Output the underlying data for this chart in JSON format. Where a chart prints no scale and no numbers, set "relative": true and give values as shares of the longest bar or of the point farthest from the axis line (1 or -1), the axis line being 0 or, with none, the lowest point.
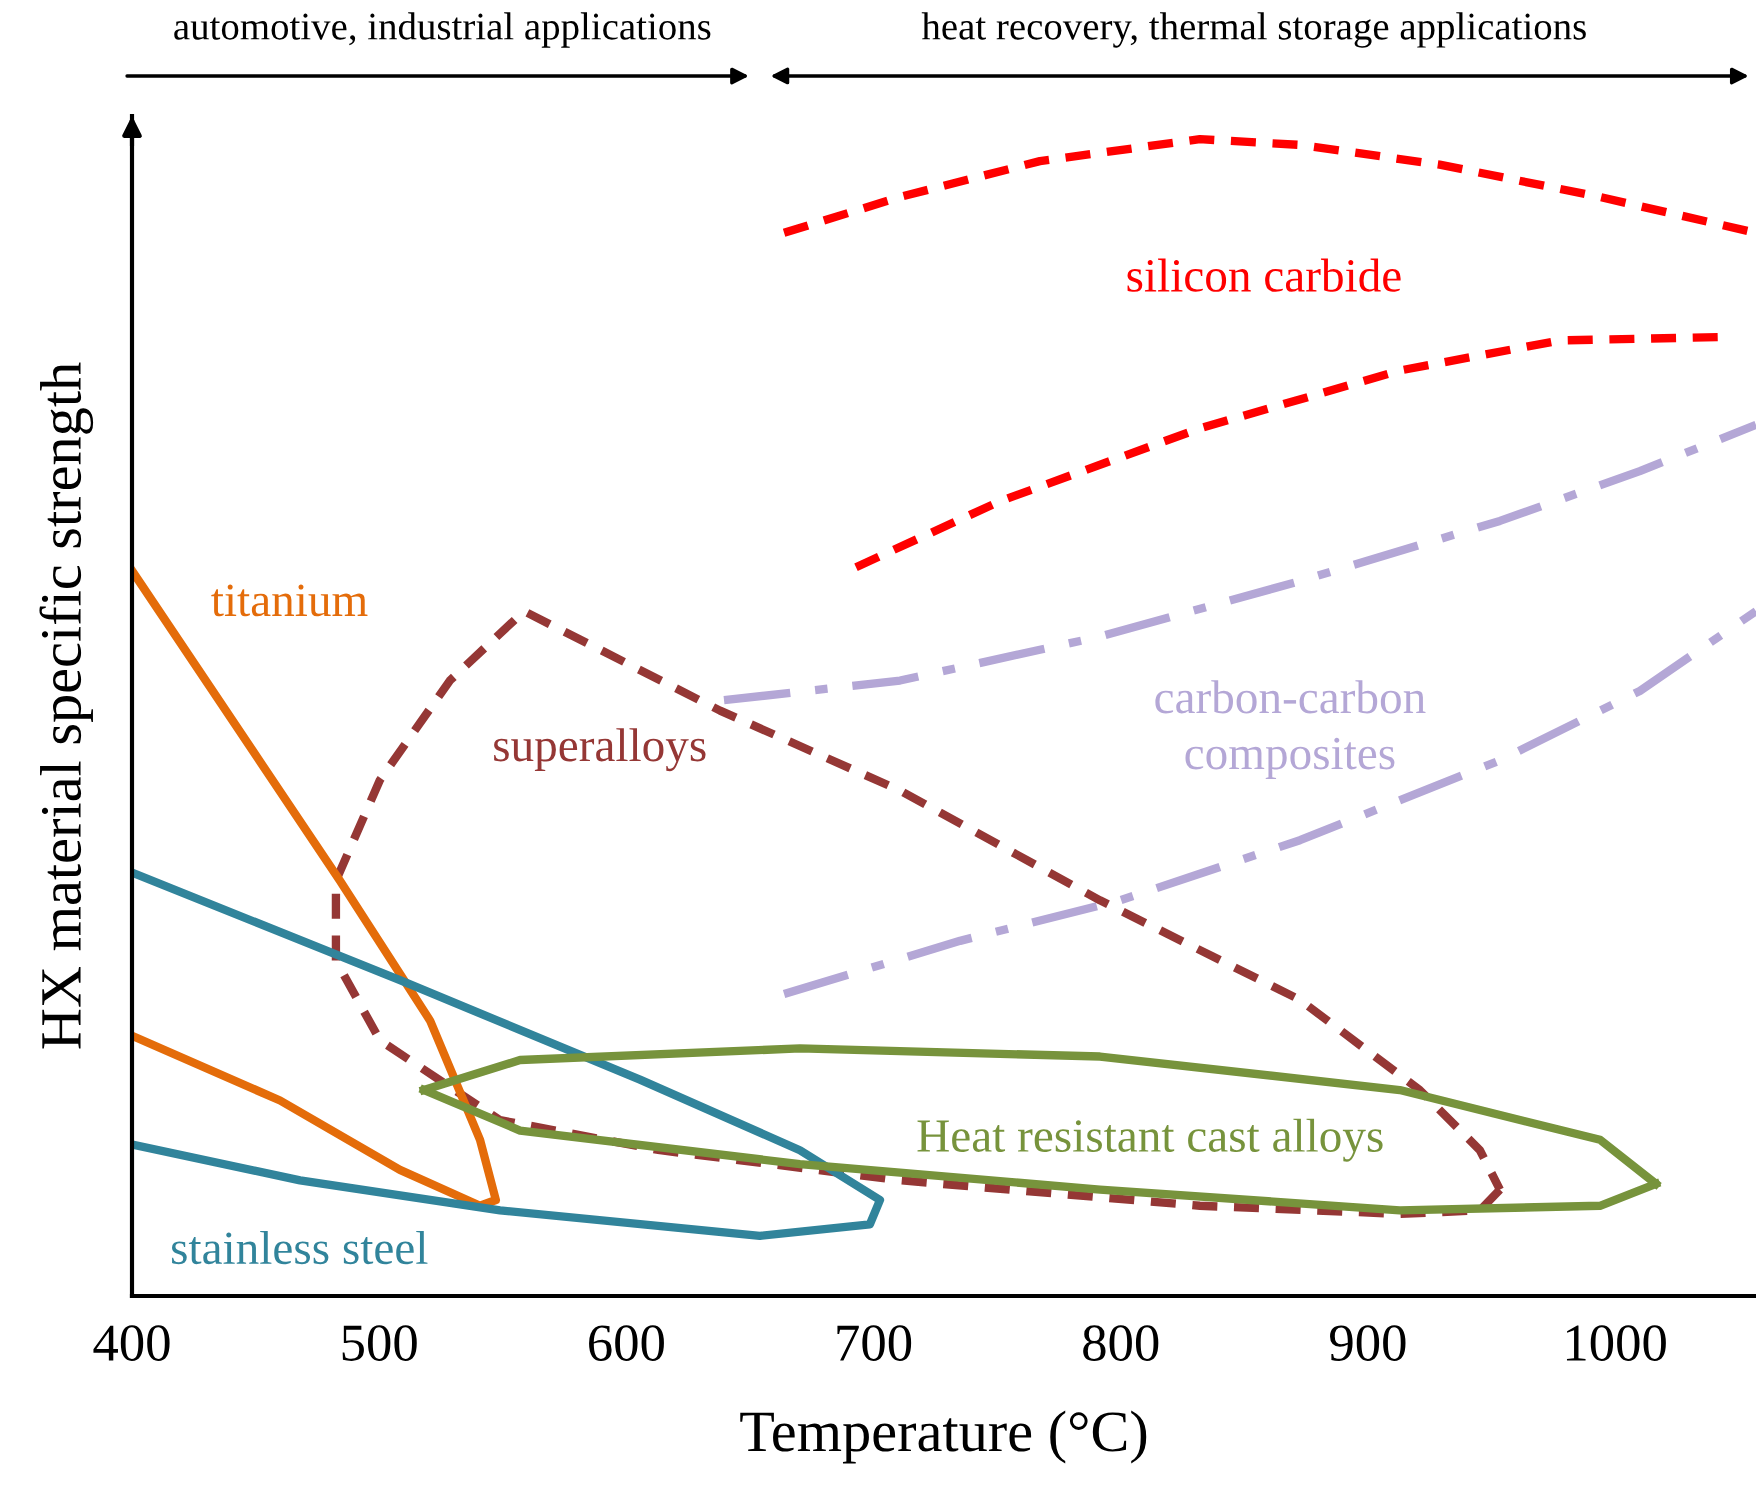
{
  "chart_data": {
    "type": "line",
    "relative": true,
    "xlabel": "Temperature (°C)",
    "ylabel": "HX material specific strength",
    "xlim": [
      400,
      1057
    ],
    "xticks": [
      400,
      500,
      600,
      700,
      800,
      900,
      1000
    ],
    "tick_labels": "x",
    "grid": false,
    "legend": false,
    "marker": "none",
    "series": [
      {
        "name": "silicon carbide",
        "color": "#ff0000",
        "line_style": "dashed",
        "x": [
          663.8,
          710.7,
          767.3,
          832,
          872.5,
          929,
          993.9,
          1057
        ],
        "values": [
          0.919,
          0.95,
          0.981,
          1.0,
          0.995,
          0.978,
          0.95,
          0.919
        ]
      },
      {
        "color": "#ff0000",
        "line_style": "dashed",
        "x": [
          692.9,
          751.1,
          832,
          912.9,
          977.6,
          1044
        ],
        "values": [
          0.63,
          0.687,
          0.75,
          0.8,
          0.826,
          0.829
        ]
      },
      {
        "name": "carbon-carbon\ncomposites",
        "color": "#b4a7d6",
        "line_style": "dashdot",
        "x": [
          639.5,
          710.7,
          791.6,
          872.5,
          953.4,
          1010,
          1057
        ],
        "values": [
          0.515,
          0.532,
          0.57,
          0.618,
          0.67,
          0.713,
          0.753
        ]
      },
      {
        "color": "#b4a7d6",
        "line_style": "dashdot",
        "x": [
          663.8,
          735,
          799.7,
          872.5,
          953.4,
          1010,
          1057
        ],
        "values": [
          0.261,
          0.307,
          0.342,
          0.394,
          0.463,
          0.523,
          0.592
        ]
      },
      {
        "name": "superalloys",
        "color": "#953735",
        "line_style": "dashed",
        "x": [
          482.5,
          482.5,
          500.3,
          528.6,
          558.6,
          637.9,
          710.7,
          791.6,
          872.5,
          921,
          945.3,
          953.4
        ],
        "values": [
          0.29,
          0.359,
          0.446,
          0.532,
          0.592,
          0.506,
          0.437,
          0.342,
          0.256,
          0.178,
          0.126,
          0.092
        ]
      },
      {
        "color": "#953735",
        "line_style": "dashed",
        "x": [
          953.4,
          945.3,
          912.9,
          832,
          710.7,
          613.6,
          548.9,
          500.3,
          482.5
        ],
        "values": [
          0.092,
          0.074,
          0.071,
          0.078,
          0.1,
          0.126,
          0.152,
          0.221,
          0.29
        ]
      },
      {
        "name": "titanium",
        "color": "#e46c0a",
        "line_style": "solid",
        "x": [
          400,
          484.1,
          520.6,
          540.8,
          547.2,
          540.8,
          508.4,
          459.9,
          400
        ],
        "values": [
          0.627,
          0.359,
          0.238,
          0.135,
          0.083,
          0.078,
          0.109,
          0.169,
          0.225
        ]
      },
      {
        "name": "stainless steel",
        "color": "#31849b",
        "line_style": "solid",
        "x": [
          400,
          508.4,
          605.5,
          670.2,
          702.6,
          698.5,
          654,
          548.9,
          468,
          400
        ],
        "values": [
          0.366,
          0.273,
          0.187,
          0.126,
          0.083,
          0.062,
          0.052,
          0.074,
          0.1,
          0.131
        ]
      },
      {
        "name": "Heat resistant cast alloys",
        "color": "#77933c",
        "line_style": "solid",
        "x": [
          518.1,
          557,
          670.2,
          791.6,
          912.9,
          993.9,
          1016.5
        ],
        "values": [
          0.178,
          0.204,
          0.214,
          0.207,
          0.178,
          0.135,
          0.097
        ]
      },
      {
        "color": "#77933c",
        "line_style": "solid",
        "x": [
          1016.5,
          993.9,
          912.9,
          791.6,
          670.2,
          557,
          518.1
        ],
        "values": [
          0.097,
          0.078,
          0.074,
          0.092,
          0.114,
          0.143,
          0.178
        ]
      }
    ],
    "annotations": [
      "automotive, industrial applications",
      "heat recovery, thermal storage applications"
    ]
  }
}
